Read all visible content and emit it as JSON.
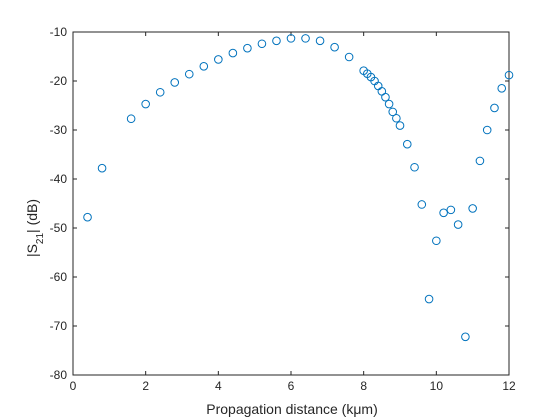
{
  "chart_data": {
    "type": "scatter",
    "xlabel": "Propagation distance (kμm)",
    "ylabel": "|S21| (dB)",
    "xlim": [
      0,
      12
    ],
    "ylim": [
      -80,
      -10
    ],
    "xticks": [
      0,
      2,
      4,
      6,
      8,
      10,
      12
    ],
    "yticks": [
      -10,
      -20,
      -30,
      -40,
      -50,
      -60,
      -70,
      -80
    ],
    "grid": false,
    "marker": "circle",
    "color": "#0072BD",
    "series": [
      {
        "x": [
          0.4,
          0.8,
          1.6,
          2.0,
          2.4,
          2.8,
          3.2,
          3.6,
          4.0,
          4.4,
          4.8,
          5.2,
          5.6,
          6.0,
          6.4,
          6.8,
          7.2,
          7.6,
          8.0,
          8.1,
          8.2,
          8.3,
          8.4,
          8.5,
          8.6,
          8.7,
          8.8,
          8.9,
          9.0,
          9.2,
          9.4,
          9.6,
          9.8,
          10.0,
          10.2,
          10.4,
          10.6,
          10.8,
          11.0,
          11.2,
          11.4,
          11.6,
          11.8,
          12.0
        ],
        "y": [
          -47.8,
          -37.8,
          -27.7,
          -24.7,
          -22.3,
          -20.3,
          -18.6,
          -17.0,
          -15.6,
          -14.3,
          -13.3,
          -12.4,
          -11.8,
          -11.3,
          -11.3,
          -11.8,
          -13.1,
          -15.1,
          -17.9,
          -18.5,
          -19.2,
          -20.0,
          -21.0,
          -22.1,
          -23.3,
          -24.7,
          -26.3,
          -27.6,
          -29.1,
          -32.9,
          -37.6,
          -45.2,
          -64.5,
          -52.6,
          -46.9,
          -46.3,
          -49.3,
          -72.2,
          -46.0,
          -36.3,
          -30.0,
          -25.5,
          -21.5,
          -18.8
        ]
      }
    ]
  }
}
